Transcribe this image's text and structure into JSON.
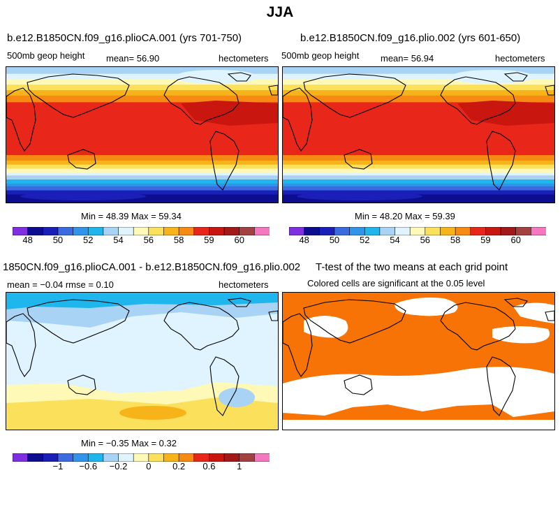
{
  "main_title": "JJA",
  "palette": [
    "#7f2fe0",
    "#0c0d8f",
    "#1a1fb8",
    "#3c6be0",
    "#2f94ea",
    "#1fb6ee",
    "#a8d3f5",
    "#dff4ff",
    "#fff9b8",
    "#fbe05c",
    "#f7b41a",
    "#f78a12",
    "#e8261a",
    "#c9160f",
    "#a31818",
    "#a34040",
    "#f477bf"
  ],
  "panels": [
    {
      "title": "b.e12.B1850CN.f09_g16.plioCA.001 (yrs 701-750)",
      "left_label": "500mb geop height",
      "center_label": "mean=   56.90",
      "right_label": "hectometers",
      "minmax": "Min =   48.39  Max =   59.34",
      "colorbar_labels": [
        "48",
        "50",
        "52",
        "54",
        "56",
        "58",
        "59",
        "60"
      ]
    },
    {
      "title": "b.e12.B1850CN.f09_g16.plio.002 (yrs 601-650)",
      "left_label": "500mb geop height",
      "center_label": "mean=   56.94",
      "right_label": "hectometers",
      "minmax": "Min =   48.20  Max =   59.39",
      "colorbar_labels": [
        "48",
        "50",
        "52",
        "54",
        "56",
        "58",
        "59",
        "60"
      ]
    },
    {
      "title": "1850CN.f09_g16.plioCA.001 - b.e12.B1850CN.f09_g16.plio.002",
      "left_label": "mean =  −0.04     rmse =    0.10",
      "right_label": "hectometers",
      "minmax": "Min =  −0.35  Max =    0.32",
      "colorbar_labels": [
        "−1",
        "−0.6",
        "−0.2",
        "0",
        "0.2",
        "0.6",
        "1"
      ]
    },
    {
      "title": "T-test of the two means at each grid point",
      "subtitle": "Colored cells are significant at the 0.05 level",
      "fill_color": "#f77305"
    }
  ],
  "chart_data": [
    {
      "type": "heatmap",
      "title": "b.e12.B1850CN.f09_g16.plioCA.001 (yrs 701-750)",
      "variable": "500mb geop height",
      "units": "hectometers",
      "mean": 56.9,
      "min": 48.39,
      "max": 59.34,
      "colorbar_ticks": [
        48,
        50,
        52,
        54,
        56,
        58,
        59,
        60
      ]
    },
    {
      "type": "heatmap",
      "title": "b.e12.B1850CN.f09_g16.plio.002 (yrs 601-650)",
      "variable": "500mb geop height",
      "units": "hectometers",
      "mean": 56.94,
      "min": 48.2,
      "max": 59.39,
      "colorbar_ticks": [
        48,
        50,
        52,
        54,
        56,
        58,
        59,
        60
      ]
    },
    {
      "type": "heatmap",
      "title": "1850CN.f09_g16.plioCA.001 - b.e12.B1850CN.f09_g16.plio.002",
      "units": "hectometers",
      "mean": -0.04,
      "rmse": 0.1,
      "min": -0.35,
      "max": 0.32,
      "colorbar_ticks": [
        -1,
        -0.6,
        -0.2,
        0,
        0.2,
        0.6,
        1
      ]
    },
    {
      "type": "heatmap",
      "title": "T-test of the two means at each grid point",
      "note": "Colored cells are significant at the 0.05 level",
      "significance_level": 0.05
    }
  ]
}
